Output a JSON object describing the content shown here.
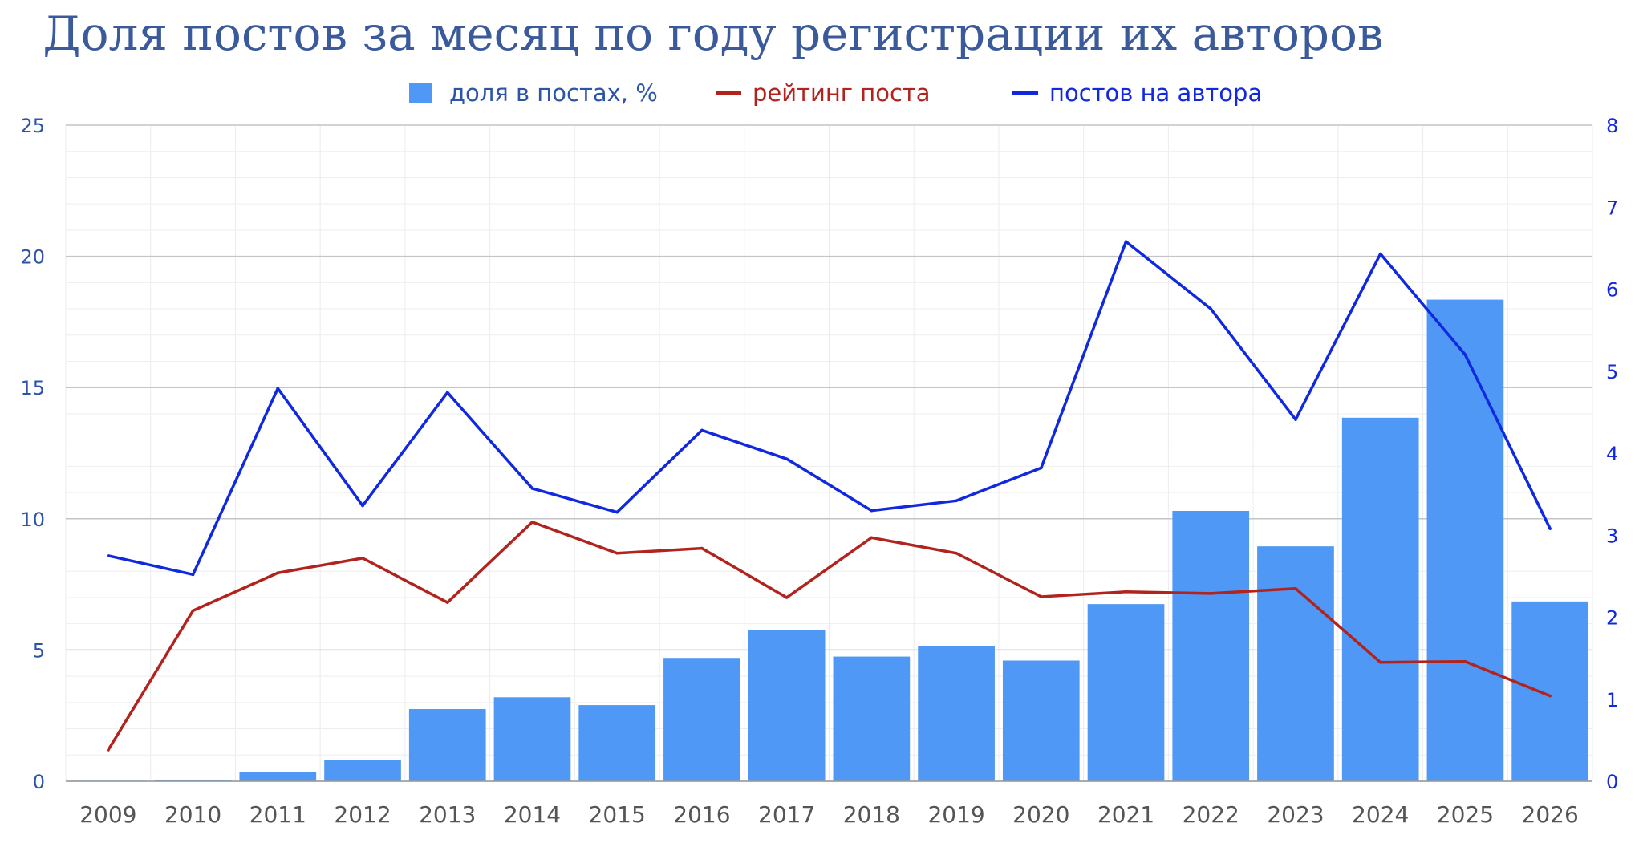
{
  "colors": {
    "bar": "#4f98f5",
    "rating": "#b2231e",
    "posts_per_author": "#1028e0",
    "title": "#3a5a9b",
    "left_axis": "#2c55a8",
    "right_axis": "#1028e0",
    "x_axis": "#555555"
  },
  "chart_data": {
    "type": "bar",
    "title": "Доля постов за месяц по году регистрации их авторов",
    "categories": [
      "2009",
      "2010",
      "2011",
      "2012",
      "2013",
      "2014",
      "2015",
      "2016",
      "2017",
      "2018",
      "2019",
      "2020",
      "2021",
      "2022",
      "2023",
      "2024",
      "2025",
      "2026"
    ],
    "series": [
      {
        "name": "доля в постах, %",
        "type": "bar",
        "axis": "left",
        "values": [
          0.02,
          0.05,
          0.35,
          0.8,
          2.75,
          3.2,
          2.9,
          4.7,
          5.75,
          4.75,
          5.15,
          4.6,
          6.75,
          10.3,
          8.95,
          13.85,
          18.35,
          6.85
        ]
      },
      {
        "name": "рейтинг поста",
        "type": "line",
        "axis": "right",
        "values": [
          0.38,
          2.08,
          2.54,
          2.72,
          2.18,
          3.16,
          2.78,
          2.84,
          2.24,
          2.97,
          2.78,
          2.25,
          2.31,
          2.29,
          2.35,
          1.45,
          1.46,
          1.04
        ]
      },
      {
        "name": "постов на автора",
        "type": "line",
        "axis": "right",
        "values": [
          2.75,
          2.52,
          4.79,
          3.36,
          4.74,
          3.57,
          3.28,
          4.28,
          3.93,
          3.3,
          3.42,
          3.82,
          6.58,
          5.76,
          4.41,
          6.43,
          5.2,
          3.08
        ]
      }
    ],
    "y_left": {
      "ticks": [
        "0",
        "5",
        "10",
        "15",
        "20",
        "25"
      ],
      "lim": [
        0,
        25
      ]
    },
    "y_right": {
      "ticks": [
        "0",
        "1",
        "2",
        "3",
        "4",
        "5",
        "6",
        "7",
        "8"
      ],
      "lim": [
        0,
        8
      ]
    },
    "grid": true,
    "legend_position": "top"
  }
}
